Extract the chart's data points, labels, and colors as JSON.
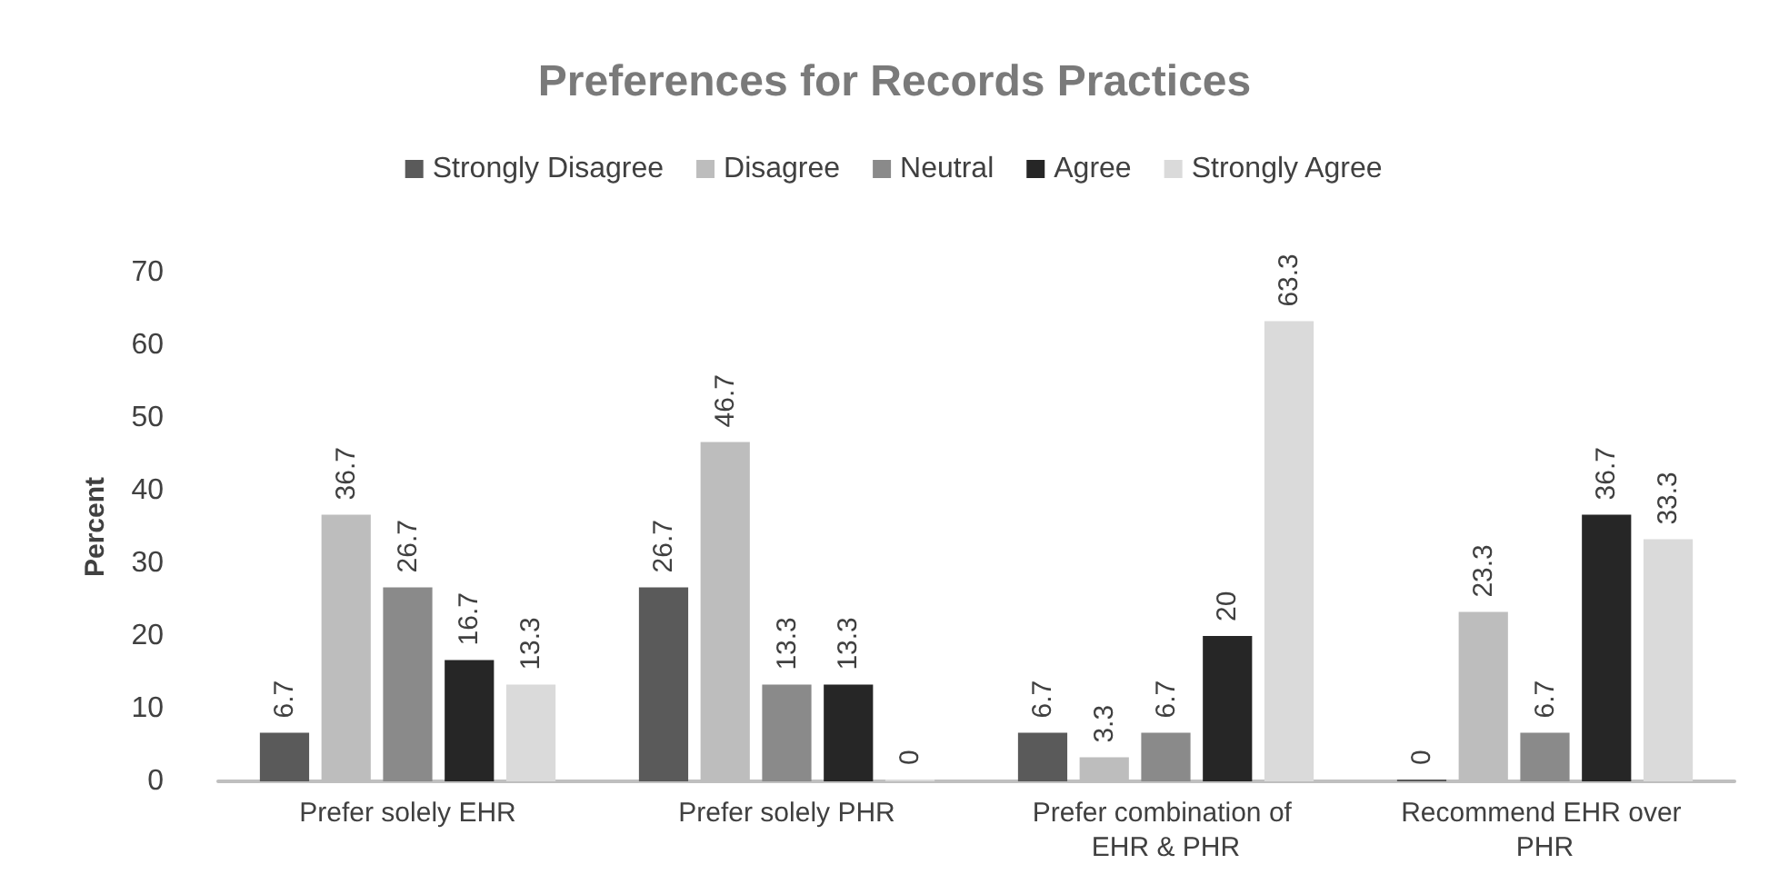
{
  "chart_data": {
    "type": "bar",
    "title": "Preferences for Records Practices",
    "ylabel": "Percent",
    "categories": [
      "Prefer solely EHR",
      "Prefer solely PHR",
      "Prefer combination of EHR & PHR",
      "Recommend EHR over PHR"
    ],
    "series": [
      {
        "name": "Strongly Disagree",
        "color": "#5a5a5a",
        "values": [
          6.7,
          26.7,
          6.7,
          0
        ]
      },
      {
        "name": "Disagree",
        "color": "#bdbdbd",
        "values": [
          36.7,
          46.7,
          3.3,
          23.3
        ]
      },
      {
        "name": "Neutral",
        "color": "#8a8a8a",
        "values": [
          26.7,
          13.3,
          6.7,
          6.7
        ]
      },
      {
        "name": "Agree",
        "color": "#262626",
        "values": [
          16.7,
          13.3,
          20,
          36.7
        ]
      },
      {
        "name": "Strongly Agree",
        "color": "#dadada",
        "values": [
          13.3,
          0,
          63.3,
          33.3
        ]
      }
    ],
    "ylim": [
      0,
      70
    ],
    "yticks": [
      0,
      10,
      20,
      30,
      40,
      50,
      60,
      70
    ],
    "grid": false,
    "legend": "top",
    "data_labels": true
  }
}
